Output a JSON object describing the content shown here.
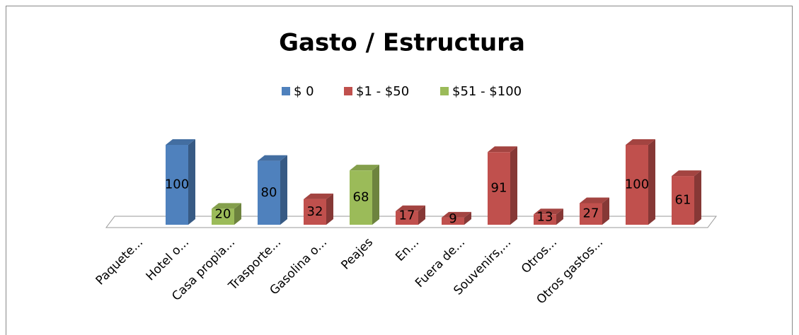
{
  "chart_data": {
    "type": "bar3d",
    "title": "Gasto / Estructura",
    "categories": [
      "Paquete...",
      "Hotel o...",
      "Casa propia...",
      "Trasporte...",
      "Gasolina o...",
      "Peajes",
      "En...",
      "Fuera de...",
      "Souvenirs,...",
      "Otros...",
      "Otros gastos...",
      null,
      null
    ],
    "series": [
      {
        "name": "$ 0",
        "color": "#4f81bd",
        "values": [
          null,
          100,
          null,
          80,
          null,
          null,
          null,
          null,
          null,
          null,
          null,
          null,
          null
        ]
      },
      {
        "name": "$1 - $50",
        "color": "#c0504d",
        "values": [
          null,
          null,
          null,
          null,
          32,
          null,
          17,
          9,
          91,
          13,
          27,
          100,
          61
        ]
      },
      {
        "name": "$51 - $100",
        "color": "#9bbb59",
        "values": [
          null,
          null,
          20,
          null,
          null,
          68,
          null,
          null,
          null,
          null,
          null,
          null,
          null
        ]
      }
    ],
    "ylim": [
      0,
      100
    ],
    "legend": "top"
  }
}
